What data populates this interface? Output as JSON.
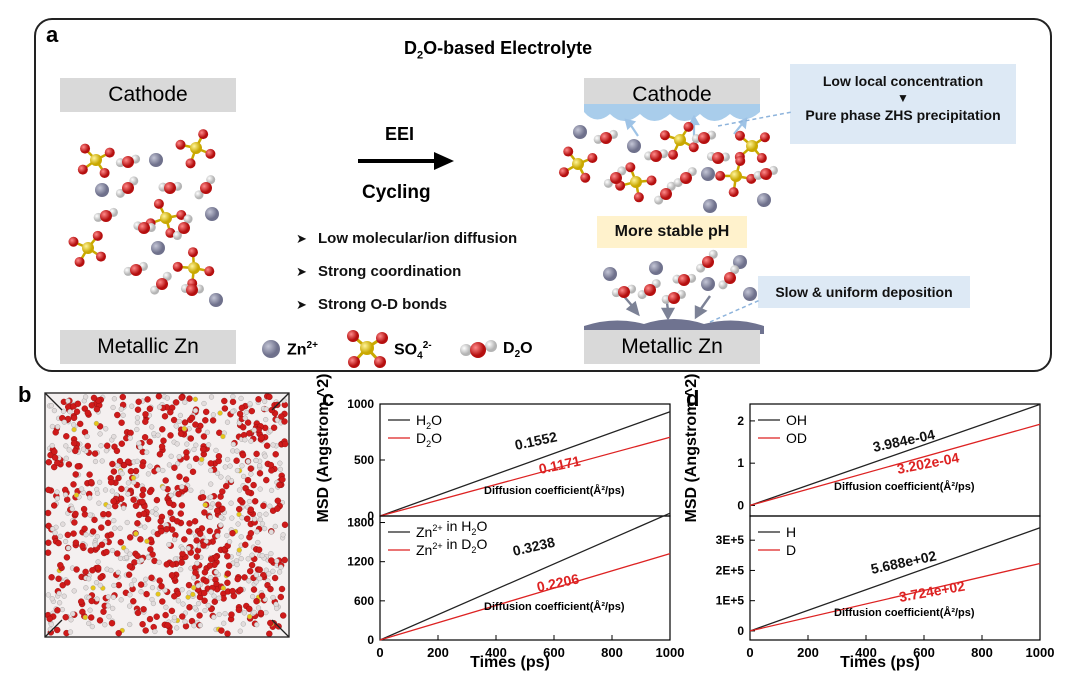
{
  "panel_a": {
    "letter": "a",
    "title_pre": "D",
    "title_sub": "2",
    "title_post": "O-based Electrolyte",
    "cathode_left": "Cathode",
    "zn_left": "Metallic Zn",
    "arrow_top": "EEI",
    "arrow_bottom": "Cycling",
    "bullets": [
      "Low molecular/ion diffusion",
      "Strong coordination",
      "Strong O-D bonds"
    ],
    "cathode_right": "Cathode",
    "zn_right": "Metallic Zn",
    "ph_label": "More stable pH",
    "note_top_1": "Low local concentration",
    "note_top_2": "Pure phase ZHS precipitation",
    "note_bottom": "Slow & uniform deposition",
    "legend": {
      "zn_pre": "Zn",
      "zn_sup": "2+",
      "so4_pre": "SO",
      "so4_sub": "4",
      "so4_sup": "2-",
      "d2o_pre": "D",
      "d2o_sub": "2",
      "d2o_post": "O"
    },
    "colors": {
      "zn": "#7d7f98",
      "sulfur": "#e6c619",
      "oxygen": "#d11a1a",
      "hydrogen": "#e4e4e4",
      "cloud": "#a9cdeb",
      "deposit": "#6f7390"
    }
  },
  "panel_b": {
    "letter": "b"
  },
  "panel_c": {
    "letter": "c",
    "ylabel": "MSD (Angstrom ^2)",
    "xlabel": "Times (ps)"
  },
  "panel_d": {
    "letter": "d",
    "ylabel": "MSD (Angstrom ^2)",
    "xlabel": "Times (ps)"
  },
  "chart_data": [
    {
      "type": "line",
      "panel": "c-top",
      "ylim": [
        0,
        1000
      ],
      "yticks": [
        "0",
        "500",
        "1000"
      ],
      "x": [
        0,
        1000
      ],
      "series": [
        {
          "name": "H2O",
          "color": "#222222",
          "values": [
            0,
            931
          ],
          "coefficient": "0.1552"
        },
        {
          "name": "D2O",
          "color": "#dd2222",
          "values": [
            0,
            703
          ],
          "coefficient": "0.1171"
        }
      ],
      "annotation": "Diffusion coefficient(Å²/ps)"
    },
    {
      "type": "line",
      "panel": "c-bottom",
      "ylim": [
        0,
        1900
      ],
      "yticks": [
        "0",
        "600",
        "1200",
        "1800"
      ],
      "xlim": [
        0,
        1000
      ],
      "xticks": [
        "0",
        "200",
        "400",
        "600",
        "800",
        "1000"
      ],
      "x": [
        0,
        1000
      ],
      "series": [
        {
          "name": "Zn2+ in H2O",
          "color": "#222222",
          "values": [
            0,
            1943
          ],
          "coefficient": "0.3238"
        },
        {
          "name": "Zn2+ in D2O",
          "color": "#dd2222",
          "values": [
            0,
            1324
          ],
          "coefficient": "0.2206"
        }
      ],
      "annotation": "Diffusion coefficient(Å²/ps)"
    },
    {
      "type": "line",
      "panel": "d-top",
      "ylim": [
        -0.25,
        2.4
      ],
      "yticks": [
        "0",
        "1",
        "2"
      ],
      "x": [
        0,
        1000
      ],
      "series": [
        {
          "name": "OH",
          "color": "#222222",
          "values": [
            0,
            2.39
          ],
          "coefficient": "3.984e-04"
        },
        {
          "name": "OD",
          "color": "#dd2222",
          "values": [
            0,
            1.92
          ],
          "coefficient": "3.202e-04"
        }
      ],
      "annotation": "Diffusion coefficient(Å²/ps)"
    },
    {
      "type": "line",
      "panel": "d-bottom",
      "ylim": [
        -30000,
        380000
      ],
      "yticks": [
        "0",
        "1E+5",
        "2E+5",
        "3E+5"
      ],
      "xlim": [
        0,
        1000
      ],
      "xticks": [
        "0",
        "200",
        "400",
        "600",
        "800",
        "1000"
      ],
      "x": [
        0,
        1000
      ],
      "series": [
        {
          "name": "H",
          "color": "#222222",
          "values": [
            0,
            341000
          ],
          "coefficient": "5.688e+02"
        },
        {
          "name": "D",
          "color": "#dd2222",
          "values": [
            0,
            223000
          ],
          "coefficient": "3.724e+02"
        }
      ],
      "annotation": "Diffusion coefficient(Å²/ps)"
    }
  ]
}
